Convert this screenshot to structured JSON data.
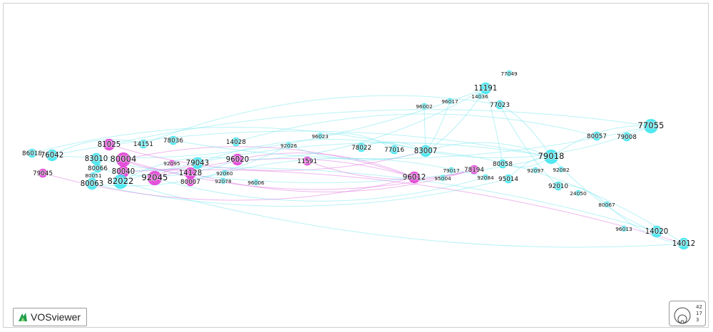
{
  "app": {
    "logo_text": "VOSviewer"
  },
  "legend": {
    "values": [
      "42",
      "17",
      "3"
    ]
  },
  "colors": {
    "cyan_cluster": "#3fe6ee",
    "magenta_cluster": "#e23fd6",
    "cyan_link": "#7fe7ee",
    "magenta_link": "#e07ce0"
  },
  "nodes": [
    {
      "id": "86018",
      "label": "86018",
      "cluster": "cyan",
      "weight": 2
    },
    {
      "id": "76042",
      "label": "76042",
      "cluster": "cyan",
      "weight": 3
    },
    {
      "id": "79045",
      "label": "79045",
      "cluster": "magenta",
      "weight": 2
    },
    {
      "id": "81025",
      "label": "81025",
      "cluster": "magenta",
      "weight": 3
    },
    {
      "id": "14151",
      "label": "14151",
      "cluster": "cyan",
      "weight": 2
    },
    {
      "id": "78036",
      "label": "78036",
      "cluster": "cyan",
      "weight": 2
    },
    {
      "id": "83010",
      "label": "83010",
      "cluster": "cyan",
      "weight": 3
    },
    {
      "id": "80004",
      "label": "80004",
      "cluster": "magenta",
      "weight": 4
    },
    {
      "id": "80066",
      "label": "80066",
      "cluster": "cyan",
      "weight": 2
    },
    {
      "id": "80040",
      "label": "80040",
      "cluster": "magenta",
      "weight": 3
    },
    {
      "id": "80051",
      "label": "80051",
      "cluster": "cyan",
      "weight": 1
    },
    {
      "id": "80063",
      "label": "80063",
      "cluster": "cyan",
      "weight": 3
    },
    {
      "id": "82022",
      "label": "82022",
      "cluster": "cyan",
      "weight": 4
    },
    {
      "id": "92045",
      "label": "92045",
      "cluster": "magenta",
      "weight": 4
    },
    {
      "id": "92095",
      "label": "92095",
      "cluster": "magenta",
      "weight": 1
    },
    {
      "id": "79043",
      "label": "79043",
      "cluster": "cyan",
      "weight": 3
    },
    {
      "id": "14128",
      "label": "14128",
      "cluster": "magenta",
      "weight": 3
    },
    {
      "id": "80007",
      "label": "80007",
      "cluster": "magenta",
      "weight": 2
    },
    {
      "id": "92060",
      "label": "92060",
      "cluster": "cyan",
      "weight": 1
    },
    {
      "id": "92078",
      "label": "92078",
      "cluster": "cyan",
      "weight": 1
    },
    {
      "id": "14028",
      "label": "14028",
      "cluster": "cyan",
      "weight": 2
    },
    {
      "id": "96020",
      "label": "96020",
      "cluster": "magenta",
      "weight": 3
    },
    {
      "id": "96006",
      "label": "96006",
      "cluster": "cyan",
      "weight": 1
    },
    {
      "id": "92026",
      "label": "92026",
      "cluster": "cyan",
      "weight": 1
    },
    {
      "id": "96023",
      "label": "96023",
      "cluster": "cyan",
      "weight": 1
    },
    {
      "id": "11591",
      "label": "11591",
      "cluster": "magenta",
      "weight": 2
    },
    {
      "id": "78022",
      "label": "78022",
      "cluster": "cyan",
      "weight": 2
    },
    {
      "id": "77016",
      "label": "77016",
      "cluster": "cyan",
      "weight": 2
    },
    {
      "id": "83007",
      "label": "83007",
      "cluster": "cyan",
      "weight": 3
    },
    {
      "id": "96012",
      "label": "96012",
      "cluster": "magenta",
      "weight": 3
    },
    {
      "id": "95004",
      "label": "95004",
      "cluster": "cyan",
      "weight": 1
    },
    {
      "id": "79017",
      "label": "79017",
      "cluster": "cyan",
      "weight": 1
    },
    {
      "id": "78194",
      "label": "78194",
      "cluster": "magenta",
      "weight": 2
    },
    {
      "id": "92084",
      "label": "92084",
      "cluster": "cyan",
      "weight": 1
    },
    {
      "id": "95014",
      "label": "95014",
      "cluster": "cyan",
      "weight": 2
    },
    {
      "id": "80058",
      "label": "80058",
      "cluster": "cyan",
      "weight": 2
    },
    {
      "id": "79018",
      "label": "79018",
      "cluster": "cyan",
      "weight": 4
    },
    {
      "id": "92097",
      "label": "92097",
      "cluster": "cyan",
      "weight": 1
    },
    {
      "id": "92082",
      "label": "92082",
      "cluster": "cyan",
      "weight": 1
    },
    {
      "id": "92010",
      "label": "92010",
      "cluster": "cyan",
      "weight": 2
    },
    {
      "id": "24050",
      "label": "24050",
      "cluster": "cyan",
      "weight": 1
    },
    {
      "id": "96002",
      "label": "96002",
      "cluster": "cyan",
      "weight": 1
    },
    {
      "id": "96017",
      "label": "96017",
      "cluster": "cyan",
      "weight": 1
    },
    {
      "id": "14036",
      "label": "14036",
      "cluster": "cyan",
      "weight": 1
    },
    {
      "id": "11191",
      "label": "11191",
      "cluster": "cyan",
      "weight": 3
    },
    {
      "id": "77049",
      "label": "77049",
      "cluster": "cyan",
      "weight": 1
    },
    {
      "id": "77023",
      "label": "77023",
      "cluster": "cyan",
      "weight": 2
    },
    {
      "id": "80057",
      "label": "80057",
      "cluster": "cyan",
      "weight": 2
    },
    {
      "id": "79008",
      "label": "79008",
      "cluster": "cyan",
      "weight": 2
    },
    {
      "id": "77055",
      "label": "77055",
      "cluster": "cyan",
      "weight": 4
    },
    {
      "id": "80067",
      "label": "80067",
      "cluster": "cyan",
      "weight": 1
    },
    {
      "id": "96013",
      "label": "96013",
      "cluster": "cyan",
      "weight": 1
    },
    {
      "id": "14020",
      "label": "14020",
      "cluster": "cyan",
      "weight": 3
    },
    {
      "id": "14012",
      "label": "14012",
      "cluster": "cyan",
      "weight": 3
    }
  ],
  "links": [
    [
      "86018",
      "83007"
    ],
    [
      "76042",
      "11191"
    ],
    [
      "76042",
      "79018"
    ],
    [
      "81025",
      "83007"
    ],
    [
      "81025",
      "77055"
    ],
    [
      "83010",
      "79018"
    ],
    [
      "80004",
      "96012"
    ],
    [
      "80004",
      "78194"
    ],
    [
      "80040",
      "14020"
    ],
    [
      "80063",
      "95014"
    ],
    [
      "82022",
      "79018"
    ],
    [
      "82022",
      "14012"
    ],
    [
      "92045",
      "96012"
    ],
    [
      "92045",
      "92084"
    ],
    [
      "79043",
      "83007"
    ],
    [
      "14128",
      "78194"
    ],
    [
      "96020",
      "96012"
    ],
    [
      "96020",
      "11191"
    ],
    [
      "14151",
      "77023"
    ],
    [
      "78036",
      "77055"
    ],
    [
      "14028",
      "80057"
    ],
    [
      "92026",
      "83007"
    ],
    [
      "96023",
      "77016"
    ],
    [
      "11591",
      "78194"
    ],
    [
      "78022",
      "83007"
    ],
    [
      "83007",
      "11191"
    ],
    [
      "83007",
      "79018"
    ],
    [
      "83007",
      "77055"
    ],
    [
      "83007",
      "14012"
    ],
    [
      "83007",
      "96017"
    ],
    [
      "95014",
      "79018"
    ],
    [
      "80058",
      "79018"
    ],
    [
      "79018",
      "77055"
    ],
    [
      "79018",
      "14020"
    ],
    [
      "77023",
      "79018"
    ],
    [
      "77023",
      "92010"
    ],
    [
      "11191",
      "80058"
    ],
    [
      "80067",
      "14012"
    ],
    [
      "92010",
      "80067"
    ],
    [
      "96002",
      "83007"
    ],
    [
      "80007",
      "92084"
    ],
    [
      "79045",
      "96012"
    ],
    [
      "76042",
      "14151"
    ],
    [
      "80066",
      "96020"
    ],
    [
      "82022",
      "96020"
    ],
    [
      "80004",
      "79043"
    ],
    [
      "92045",
      "14128"
    ],
    [
      "80063",
      "92026"
    ],
    [
      "80040",
      "14012"
    ]
  ]
}
